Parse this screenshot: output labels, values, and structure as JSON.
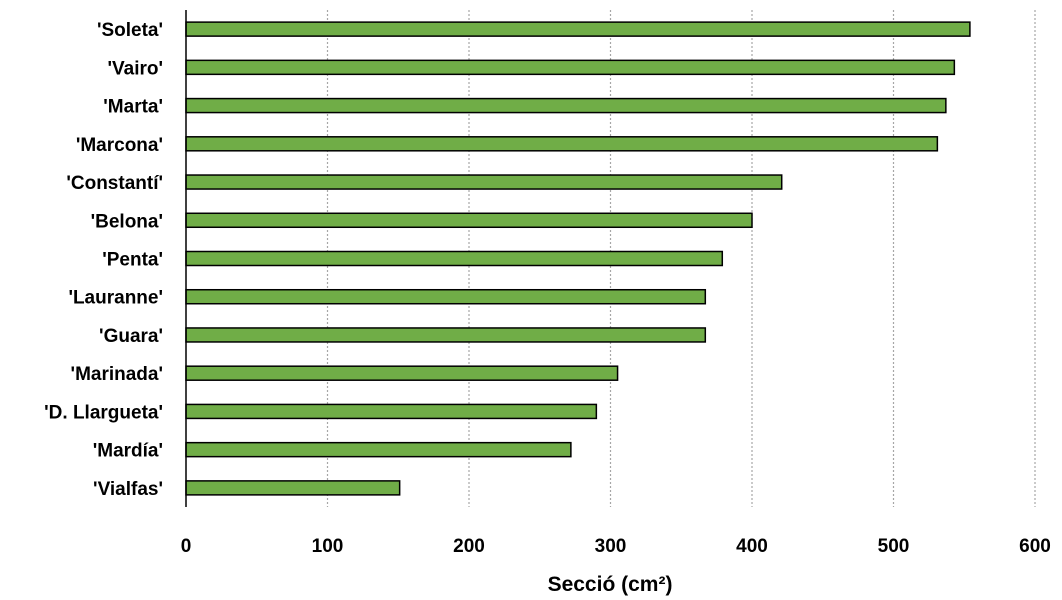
{
  "chart_data": {
    "type": "bar",
    "orientation": "horizontal",
    "categories": [
      "'Soleta'",
      "'Vairo'",
      "'Marta'",
      "'Marcona'",
      "'Constantí'",
      "'Belona'",
      "'Penta'",
      "'Lauranne'",
      "'Guara'",
      "'Marinada'",
      "'D. Llargueta'",
      "'Mardía'",
      "'Vialfas'"
    ],
    "values": [
      554,
      543,
      537,
      531,
      421,
      400,
      379,
      367,
      367,
      305,
      290,
      272,
      151
    ],
    "title": "",
    "xlabel": "Secció (cm²)",
    "ylabel": "",
    "xlim": [
      0,
      600
    ],
    "xticks": [
      "0",
      "100",
      "200",
      "300",
      "400",
      "500",
      "600"
    ],
    "grid": "vertical-dotted",
    "legend": "none",
    "bar_color": "#70ad47"
  }
}
